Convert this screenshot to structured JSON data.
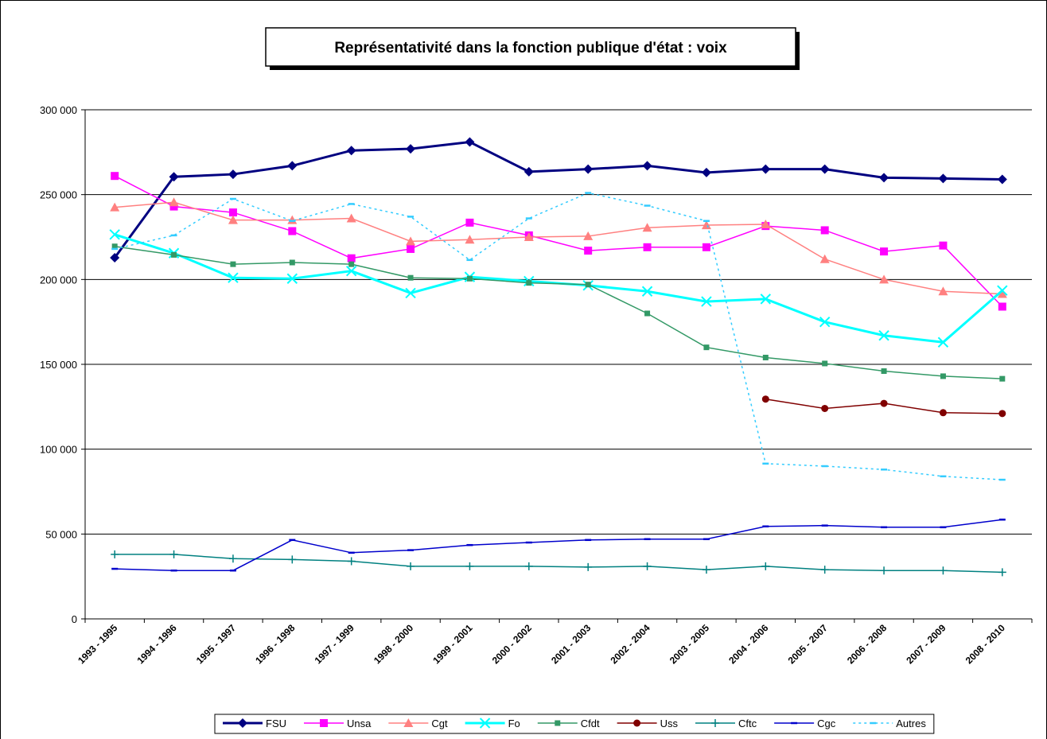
{
  "chart_data": {
    "type": "line",
    "title": "Représentativité dans la fonction publique d'état : voix",
    "categories": [
      "1993 - 1995",
      "1994 - 1996",
      "1995 - 1997",
      "1996 - 1998",
      "1997 - 1999",
      "1998 - 2000",
      "1999 - 2001",
      "2000 - 2002",
      "2001 - 2003",
      "2002 - 2004",
      "2003 - 2005",
      "2004 - 2006",
      "2005 - 2007",
      "2006 - 2008",
      "2007 - 2009",
      "2008 - 2010"
    ],
    "ylim": [
      0,
      300000
    ],
    "yticks": [
      0,
      {
        "value": 50000,
        "label": "50 000"
      },
      {
        "value": 100000,
        "label": "100 000"
      },
      {
        "value": 150000,
        "label": "150 000"
      },
      {
        "value": 200000,
        "label": "200 000"
      },
      {
        "value": 250000,
        "label": "250 000"
      },
      {
        "value": 300000,
        "label": "300 000"
      }
    ],
    "grid": true,
    "legend": "bottom",
    "series": [
      {
        "name": "FSU",
        "color": "#000080",
        "marker": "diamond",
        "width": 3,
        "values": [
          212800,
          260500,
          262000,
          267000,
          276000,
          277000,
          281000,
          263500,
          265000,
          267000,
          263000,
          265000,
          265000,
          260000,
          259500,
          259000
        ]
      },
      {
        "name": "Unsa",
        "color": "#ff00ff",
        "marker": "square",
        "width": 1.5,
        "values": [
          261000,
          243000,
          239500,
          228500,
          212500,
          218000,
          233500,
          226000,
          217000,
          219000,
          219000,
          231500,
          229000,
          216500,
          220000,
          184000
        ]
      },
      {
        "name": "Cgt",
        "color": "#ff8080",
        "marker": "triangle",
        "width": 1.5,
        "values": [
          242500,
          245500,
          235000,
          235000,
          236000,
          222500,
          223500,
          225000,
          225500,
          230500,
          232000,
          232500,
          212000,
          200000,
          193000,
          191500
        ]
      },
      {
        "name": "Fo",
        "color": "#00ffff",
        "marker": "x",
        "width": 3,
        "values": [
          226500,
          215500,
          201000,
          200500,
          205000,
          192000,
          201500,
          199000,
          196500,
          193000,
          187000,
          188500,
          175000,
          167000,
          163000,
          193500
        ]
      },
      {
        "name": "Cfdt",
        "color": "#339966",
        "marker": "smallsquare",
        "width": 1.5,
        "values": [
          219500,
          214500,
          209000,
          210000,
          209000,
          201000,
          200500,
          198000,
          197000,
          180000,
          160000,
          154000,
          150500,
          146000,
          143000,
          141500
        ]
      },
      {
        "name": "Uss",
        "color": "#800000",
        "marker": "circle",
        "width": 1.5,
        "values": [
          null,
          null,
          null,
          null,
          null,
          null,
          null,
          null,
          null,
          null,
          null,
          129500,
          124000,
          127000,
          121500,
          121000
        ]
      },
      {
        "name": "Cftc",
        "color": "#008080",
        "marker": "plus",
        "width": 1.5,
        "values": [
          38000,
          38000,
          35500,
          35000,
          34000,
          31000,
          31000,
          31000,
          30500,
          31000,
          29000,
          31000,
          29000,
          28500,
          28500,
          27500
        ]
      },
      {
        "name": "Cgc",
        "color": "#0000cc",
        "marker": "dash",
        "width": 1.5,
        "values": [
          29500,
          28500,
          28500,
          46500,
          39000,
          40500,
          43500,
          45000,
          46500,
          47000,
          47000,
          54500,
          55000,
          54000,
          54000,
          58500
        ]
      },
      {
        "name": "Autres",
        "color": "#33ccff",
        "marker": "dash",
        "width": 1.5,
        "dash": true,
        "values": [
          218000,
          226000,
          247500,
          234500,
          244500,
          237000,
          211500,
          236000,
          251000,
          243500,
          234500,
          91500,
          90000,
          88000,
          84000,
          82000
        ]
      }
    ]
  }
}
